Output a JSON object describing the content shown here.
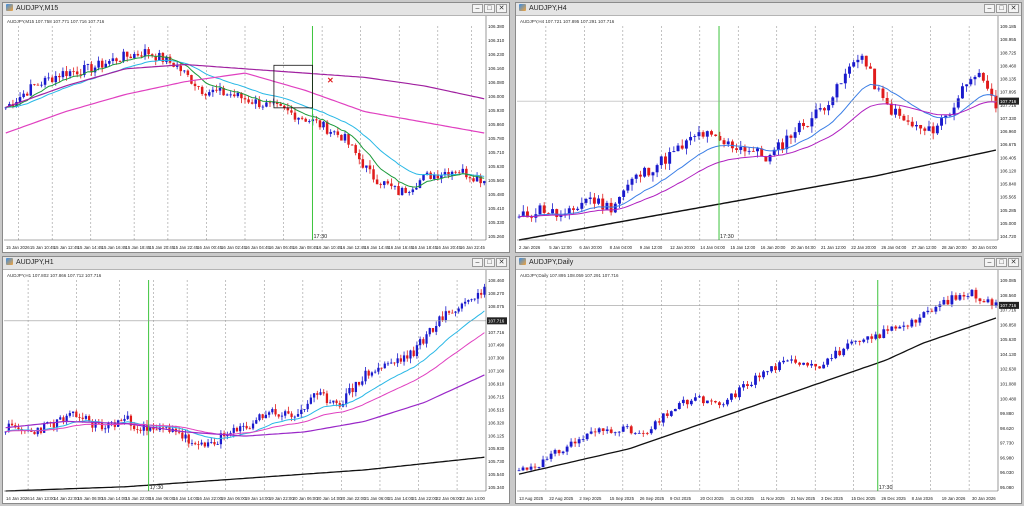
{
  "windows": [
    {
      "title": "AUDJPY,M15",
      "info": "AUDJPY,M15  107.758 107.771 107.716 107.716",
      "buttons": {
        "minimize": "–",
        "maximize": "□",
        "close": "✕"
      },
      "price_labels": [
        "106.380",
        "106.310",
        "106.230",
        "106.160",
        "106.080",
        "106.000",
        "105.930",
        "105.860",
        "105.780",
        "105.710",
        "105.630",
        "105.560",
        "105.480",
        "105.410",
        "105.330",
        "105.260"
      ],
      "date_labels": [
        "15 Jan 2026",
        "15 Jan 10:45",
        "15 Jan 12:45",
        "15 Jan 14:45",
        "15 Jan 16:45",
        "15 Jan 18:45",
        "15 Jan 20:45",
        "15 Jan 22:45",
        "16 Jan 00:45",
        "16 Jan 02:45",
        "16 Jan 04:45",
        "16 Jan 06:45",
        "16 Jan 08:45",
        "16 Jan 10:45",
        "16 Jan 12:45",
        "16 Jan 14:45",
        "16 Jan 16:45",
        "16 Jan 18:45",
        "16 Jan 20:45",
        "16 Jan 22:45"
      ],
      "current_price": "",
      "vline_label": "17:30"
    },
    {
      "title": "AUDJPY,H4",
      "info": "AUDJPY,H4  107.721 107.895 107.291 107.716",
      "buttons": {
        "minimize": "–",
        "maximize": "□",
        "close": "✕"
      },
      "price_labels": [
        "109.185",
        "108.955",
        "108.725",
        "108.460",
        "108.135",
        "107.895",
        "107.716",
        "107.330",
        "106.960",
        "106.675",
        "106.405",
        "106.120",
        "105.840",
        "105.565",
        "105.285",
        "105.000",
        "104.720"
      ],
      "date_labels": [
        "2 Jan 2026",
        "5 Jan 12:00",
        "6 Jan 20:00",
        "8 Jan 04:00",
        "9 Jan 12:00",
        "12 Jan 20:00",
        "14 Jan 04:00",
        "15 Jan 12:00",
        "16 Jan 20:00",
        "20 Jan 04:00",
        "21 Jan 12:00",
        "22 Jan 20:00",
        "26 Jan 04:00",
        "27 Jan 12:00",
        "28 Jan 20:00",
        "30 Jan 04:00"
      ],
      "current_price": "107.716",
      "vline_label": "17:30"
    },
    {
      "title": "AUDJPY,H1",
      "info": "AUDJPY,H1  107.802 107.866 107.712 107.716",
      "buttons": {
        "minimize": "–",
        "maximize": "□",
        "close": "✕"
      },
      "price_labels": [
        "108.460",
        "108.270",
        "108.075",
        "107.880",
        "107.716",
        "107.490",
        "107.300",
        "107.100",
        "106.910",
        "106.715",
        "106.515",
        "106.320",
        "106.125",
        "105.930",
        "105.730",
        "105.540",
        "105.340"
      ],
      "date_labels": [
        "14 Jan 2026",
        "14 Jan 13:00",
        "14 Jan 22:00",
        "15 Jan 06:00",
        "15 Jan 14:00",
        "15 Jan 22:00",
        "16 Jan 06:00",
        "16 Jan 14:00",
        "16 Jan 22:00",
        "19 Jan 06:00",
        "19 Jan 14:00",
        "19 Jan 22:00",
        "20 Jan 06:00",
        "20 Jan 14:00",
        "20 Jan 22:00",
        "21 Jan 06:00",
        "21 Jan 14:00",
        "21 Jan 22:00",
        "22 Jan 06:00",
        "22 Jan 14:00"
      ],
      "current_price": "107.716",
      "vline_label": "17:30"
    },
    {
      "title": "AUDJPY,Daily",
      "info": "AUDJPY,Daily  107.895 108.059 107.291 107.716",
      "buttons": {
        "minimize": "–",
        "maximize": "□",
        "close": "✕"
      },
      "price_labels": [
        "109.085",
        "108.560",
        "107.716",
        "106.850",
        "105.630",
        "104.130",
        "102.630",
        "101.080",
        "100.480",
        "99.880",
        "98.620",
        "97.730",
        "96.980",
        "96.030",
        "95.080"
      ],
      "date_labels": [
        "13 Aug 2025",
        "22 Aug 2025",
        "2 Sep 2025",
        "15 Sep 2025",
        "26 Sep 2025",
        "9 Oct 2025",
        "20 Oct 2025",
        "31 Oct 2025",
        "11 Nov 2025",
        "21 Nov 2025",
        "3 Dec 2025",
        "15 Dec 2025",
        "26 Dec 2025",
        "8 Jan 2026",
        "19 Jan 2026",
        "30 Jan 2026"
      ],
      "current_price": "107.716",
      "vline_label": "17:30"
    }
  ]
}
